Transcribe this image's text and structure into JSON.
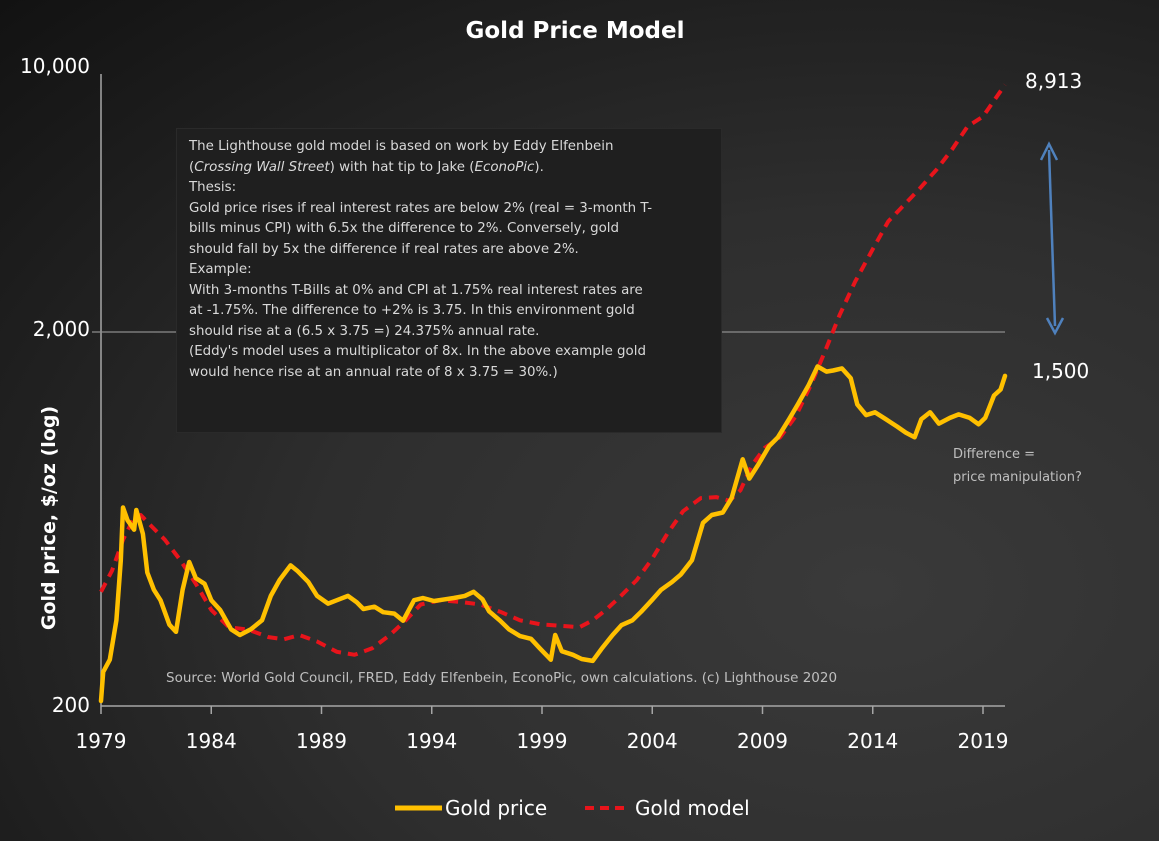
{
  "chart_data": {
    "type": "line",
    "title": "Gold Price Model",
    "xlabel": "",
    "ylabel": "Gold price, $/oz (log)",
    "yscale": "log",
    "ylim": [
      200,
      10000
    ],
    "xlim": [
      1979,
      2020
    ],
    "y_ticks": [
      {
        "value": 200,
        "label": "200"
      },
      {
        "value": 2000,
        "label": "2,000"
      },
      {
        "value": 10000,
        "label": "10,000"
      }
    ],
    "x_ticks": [
      {
        "value": 1979,
        "label": "1979"
      },
      {
        "value": 1984,
        "label": "1984"
      },
      {
        "value": 1989,
        "label": "1989"
      },
      {
        "value": 1994,
        "label": "1994"
      },
      {
        "value": 1999,
        "label": "1999"
      },
      {
        "value": 2004,
        "label": "2004"
      },
      {
        "value": 2009,
        "label": "2009"
      },
      {
        "value": 2014,
        "label": "2014"
      },
      {
        "value": 2019,
        "label": "2019"
      }
    ],
    "grid": "horizontal line at 2,000 only",
    "legend_position": "bottom",
    "series": [
      {
        "name": "Gold price",
        "color": "#FFC000",
        "style": "solid",
        "end_label": "1,500",
        "points": [
          [
            1979.0,
            205
          ],
          [
            1979.1,
            245
          ],
          [
            1979.4,
            264
          ],
          [
            1979.7,
            336
          ],
          [
            1979.9,
            485
          ],
          [
            1980.0,
            670
          ],
          [
            1980.2,
            620
          ],
          [
            1980.5,
            585
          ],
          [
            1980.6,
            660
          ],
          [
            1980.9,
            570
          ],
          [
            1981.1,
            450
          ],
          [
            1981.4,
            405
          ],
          [
            1981.7,
            380
          ],
          [
            1982.1,
            327
          ],
          [
            1982.4,
            313
          ],
          [
            1982.7,
            405
          ],
          [
            1983.0,
            480
          ],
          [
            1983.3,
            435
          ],
          [
            1983.7,
            420
          ],
          [
            1984.0,
            380
          ],
          [
            1984.4,
            358
          ],
          [
            1984.9,
            318
          ],
          [
            1985.3,
            307
          ],
          [
            1985.8,
            318
          ],
          [
            1986.3,
            336
          ],
          [
            1986.7,
            390
          ],
          [
            1987.1,
            430
          ],
          [
            1987.6,
            470
          ],
          [
            1987.9,
            455
          ],
          [
            1988.4,
            425
          ],
          [
            1988.8,
            390
          ],
          [
            1989.3,
            372
          ],
          [
            1989.7,
            380
          ],
          [
            1990.2,
            390
          ],
          [
            1990.6,
            375
          ],
          [
            1990.9,
            360
          ],
          [
            1991.4,
            365
          ],
          [
            1991.8,
            353
          ],
          [
            1992.3,
            350
          ],
          [
            1992.7,
            335
          ],
          [
            1993.2,
            380
          ],
          [
            1993.6,
            385
          ],
          [
            1994.1,
            378
          ],
          [
            1994.6,
            382
          ],
          [
            1995.0,
            385
          ],
          [
            1995.5,
            390
          ],
          [
            1995.9,
            400
          ],
          [
            1996.3,
            382
          ],
          [
            1996.6,
            355
          ],
          [
            1997.1,
            335
          ],
          [
            1997.5,
            318
          ],
          [
            1998.0,
            305
          ],
          [
            1998.5,
            300
          ],
          [
            1998.9,
            283
          ],
          [
            1999.4,
            264
          ],
          [
            1999.6,
            307
          ],
          [
            1999.9,
            278
          ],
          [
            2000.4,
            272
          ],
          [
            2000.8,
            265
          ],
          [
            2001.3,
            262
          ],
          [
            2001.7,
            282
          ],
          [
            2002.2,
            307
          ],
          [
            2002.6,
            326
          ],
          [
            2003.1,
            336
          ],
          [
            2003.5,
            354
          ],
          [
            2004.0,
            381
          ],
          [
            2004.4,
            405
          ],
          [
            2004.9,
            425
          ],
          [
            2005.3,
            445
          ],
          [
            2005.8,
            485
          ],
          [
            2006.3,
            610
          ],
          [
            2006.7,
            640
          ],
          [
            2007.2,
            650
          ],
          [
            2007.6,
            710
          ],
          [
            2008.1,
            900
          ],
          [
            2008.4,
            800
          ],
          [
            2008.8,
            870
          ],
          [
            2009.3,
            975
          ],
          [
            2009.7,
            1030
          ],
          [
            2010.2,
            1150
          ],
          [
            2010.6,
            1260
          ],
          [
            2011.1,
            1420
          ],
          [
            2011.5,
            1590
          ],
          [
            2011.9,
            1540
          ],
          [
            2012.2,
            1550
          ],
          [
            2012.6,
            1570
          ],
          [
            2013.0,
            1480
          ],
          [
            2013.3,
            1260
          ],
          [
            2013.7,
            1180
          ],
          [
            2014.1,
            1200
          ],
          [
            2014.6,
            1150
          ],
          [
            2015.1,
            1100
          ],
          [
            2015.5,
            1060
          ],
          [
            2015.9,
            1030
          ],
          [
            2016.2,
            1150
          ],
          [
            2016.6,
            1200
          ],
          [
            2017.0,
            1120
          ],
          [
            2017.5,
            1160
          ],
          [
            2017.9,
            1185
          ],
          [
            2018.4,
            1160
          ],
          [
            2018.8,
            1115
          ],
          [
            2019.1,
            1160
          ],
          [
            2019.5,
            1330
          ],
          [
            2019.8,
            1380
          ],
          [
            2020.0,
            1500
          ]
        ]
      },
      {
        "name": "Gold model",
        "color": "#E8141B",
        "style": "dashed",
        "end_label": "8,913",
        "points": [
          [
            1979.0,
            400
          ],
          [
            1979.5,
            455
          ],
          [
            1980.0,
            550
          ],
          [
            1980.5,
            630
          ],
          [
            1980.8,
            640
          ],
          [
            1981.2,
            605
          ],
          [
            1981.9,
            550
          ],
          [
            1982.6,
            485
          ],
          [
            1983.3,
            420
          ],
          [
            1984.0,
            358
          ],
          [
            1984.8,
            322
          ],
          [
            1985.7,
            317
          ],
          [
            1986.6,
            303
          ],
          [
            1987.3,
            299
          ],
          [
            1988.0,
            307
          ],
          [
            1988.8,
            295
          ],
          [
            1989.7,
            277
          ],
          [
            1990.5,
            272
          ],
          [
            1991.3,
            283
          ],
          [
            1992.1,
            307
          ],
          [
            1992.8,
            335
          ],
          [
            1993.5,
            370
          ],
          [
            1994.4,
            380
          ],
          [
            1995.3,
            376
          ],
          [
            1996.2,
            370
          ],
          [
            1997.1,
            354
          ],
          [
            1998.0,
            336
          ],
          [
            1998.9,
            328
          ],
          [
            1999.8,
            325
          ],
          [
            2000.7,
            322
          ],
          [
            2001.3,
            336
          ],
          [
            2001.9,
            358
          ],
          [
            2002.5,
            386
          ],
          [
            2003.3,
            430
          ],
          [
            2004.0,
            490
          ],
          [
            2004.7,
            573
          ],
          [
            2005.4,
            655
          ],
          [
            2006.2,
            710
          ],
          [
            2006.9,
            714
          ],
          [
            2007.5,
            698
          ],
          [
            2008.0,
            745
          ],
          [
            2008.5,
            865
          ],
          [
            2009.1,
            965
          ],
          [
            2009.8,
            1030
          ],
          [
            2010.5,
            1170
          ],
          [
            2011.2,
            1420
          ],
          [
            2011.9,
            1780
          ],
          [
            2012.5,
            2180
          ],
          [
            2013.2,
            2670
          ],
          [
            2014.0,
            3260
          ],
          [
            2014.7,
            3860
          ],
          [
            2015.3,
            4200
          ],
          [
            2016.1,
            4700
          ],
          [
            2016.9,
            5310
          ],
          [
            2017.6,
            6000
          ],
          [
            2018.3,
            6910
          ],
          [
            2019.0,
            7340
          ],
          [
            2020.0,
            8913
          ]
        ]
      }
    ],
    "annotations": [
      {
        "text": "8,913",
        "refers_to": "Gold model end value"
      },
      {
        "text": "1,500",
        "refers_to": "Gold price end value"
      },
      {
        "text": "Difference = price manipulation?",
        "refers_to": "gap between model and price (double-headed arrow)"
      },
      {
        "text": "Source: World Gold Council, FRED, Eddy Elfenbein, EconoPic, own calculations. (c) Lighthouse 2020"
      }
    ]
  },
  "labels": {
    "title": "Gold Price Model",
    "ylabel": "Gold price, $/oz (log)",
    "end_model": "8,913",
    "end_price": "1,500",
    "note_line1": "Difference =",
    "note_line2": "price manipulation?",
    "source": "Source: World Gold Council, FRED, Eddy Elfenbein, EconoPic, own calculations. (c) Lighthouse 2020",
    "legend_price": "Gold price",
    "legend_model": "Gold model",
    "arrow_color": "#4F81BD"
  },
  "info_box": {
    "intro_a": "The Lighthouse gold model is based on work by Eddy Elfenbein",
    "intro_b_open": "(",
    "intro_b_italic1": "Crossing Wall Street",
    "intro_b_mid": ") with hat tip to Jake (",
    "intro_b_italic2": "EconoPic",
    "intro_b_close": ").",
    "thesis_label": "Thesis:",
    "thesis_1": "Gold price rises if real interest rates are below 2% (real = 3-month T-",
    "thesis_2": "bills minus CPI) with 6.5x the difference to 2%. Conversely, gold",
    "thesis_3": "should fall by 5x the difference if real rates are above 2%.",
    "example_label": "Example:",
    "example_1": "With 3-months T-Bills at 0% and CPI at 1.75% real interest rates are",
    "example_2": "at -1.75%. The difference to +2% is 3.75. In this environment gold",
    "example_3": "should rise at a (6.5 x 3.75 =) 24.375% annual rate.",
    "example_4": "(Eddy's model uses a multiplicator of 8x. In the above example gold",
    "example_5": "would hence rise at an annual rate of 8 x 3.75 = 30%.)"
  }
}
